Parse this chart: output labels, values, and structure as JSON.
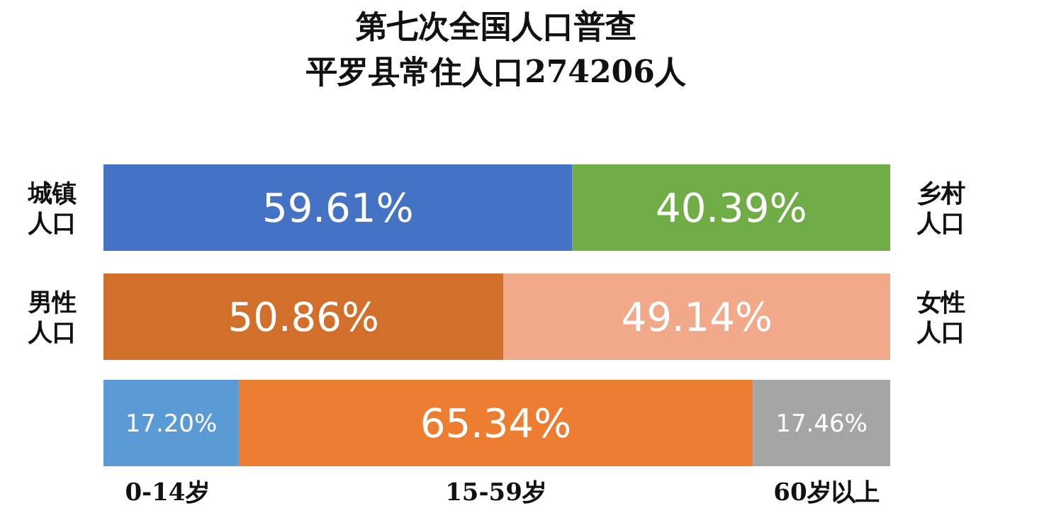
{
  "chart_data": {
    "type": "bar",
    "orientation": "horizontal",
    "stacked": true,
    "title": "第七次全国人口普查",
    "subtitle": "平罗县常住人口274206人",
    "categories": [
      null,
      null,
      null
    ],
    "xlim": [
      0,
      100
    ],
    "series": [
      {
        "name": "城镇人口",
        "color": "#4472c4",
        "values": [
          59.61,
          null,
          null
        ],
        "value_labels": [
          "59.61%",
          null,
          null
        ]
      },
      {
        "name": "乡村人口",
        "color": "#70ad47",
        "values": [
          40.39,
          null,
          null
        ],
        "value_labels": [
          "40.39%",
          null,
          null
        ]
      },
      {
        "name": "男性人口",
        "color": "#d2702b",
        "values": [
          null,
          50.86,
          null
        ],
        "value_labels": [
          null,
          "50.86%",
          null
        ]
      },
      {
        "name": "女性人口",
        "color": "#f1a98a",
        "values": [
          null,
          49.14,
          null
        ],
        "value_labels": [
          null,
          "49.14%",
          null
        ]
      },
      {
        "name": "0-14岁",
        "color": "#5b9bd5",
        "values": [
          null,
          null,
          17.2
        ],
        "value_labels": [
          null,
          null,
          "17.20%"
        ]
      },
      {
        "name": "15-59岁",
        "color": "#ed7d31",
        "values": [
          null,
          null,
          65.34
        ],
        "value_labels": [
          null,
          null,
          "65.34%"
        ]
      },
      {
        "name": "60岁以上",
        "color": "#a5a5a5",
        "values": [
          null,
          null,
          17.46
        ],
        "value_labels": [
          null,
          null,
          "17.46%"
        ]
      }
    ]
  }
}
